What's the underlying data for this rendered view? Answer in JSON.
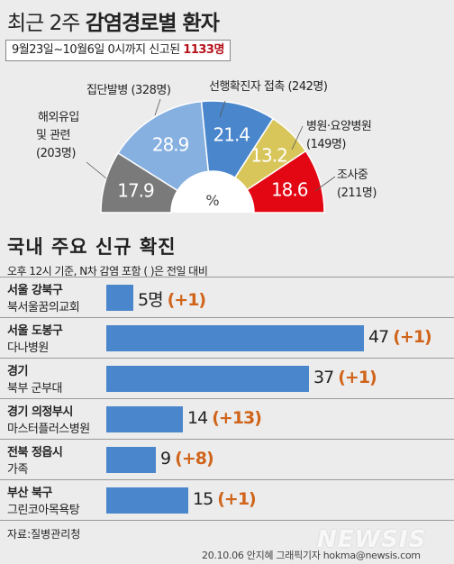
{
  "header": {
    "title_light": "최근 2주",
    "title_bold": "감염경로별 환자",
    "period_prefix": "9월23일~10월6일 0시까지 신고된",
    "period_total": "1133명"
  },
  "chart_data": [
    {
      "type": "pie",
      "style": "semi-donut",
      "center_label": "%",
      "unit": "%",
      "slices": [
        {
          "label": "해외유입 및 관련",
          "count": "(203명)",
          "value": 17.9,
          "color": "#7a7a7a"
        },
        {
          "label": "집단발병",
          "count": "(328명)",
          "value": 28.9,
          "color": "#86b0e0"
        },
        {
          "label": "선행확진자 접촉",
          "count": "(242명)",
          "value": 21.4,
          "color": "#4a86cc"
        },
        {
          "label": "병원·요양병원",
          "count": "(149명)",
          "value": 13.2,
          "color": "#d8c65a"
        },
        {
          "label": "조사중",
          "count": "(211명)",
          "value": 18.6,
          "color": "#e30613"
        }
      ]
    },
    {
      "type": "bar",
      "orientation": "horizontal",
      "title": "국내 주요 신규 확진",
      "note": "오후 12시 기준, N차 감염 포함 ( )은 전일 대비",
      "max_value": 47,
      "unit_suffix": "명",
      "items": [
        {
          "region": "서울 강북구",
          "cluster": "북서울꿈의교회",
          "value": 5,
          "value_label": "5명",
          "change": "(+1)"
        },
        {
          "region": "서울 도봉구",
          "cluster": "다나병원",
          "value": 47,
          "value_label": "47",
          "change": "(+1)"
        },
        {
          "region": "경기",
          "cluster": "북부 군부대",
          "value": 37,
          "value_label": "37",
          "change": "(+1)"
        },
        {
          "region": "경기 의정부시",
          "cluster": "마스터플러스병원",
          "value": 14,
          "value_label": "14",
          "change": "(+13)"
        },
        {
          "region": "전북 정읍시",
          "cluster": "가족",
          "value": 9,
          "value_label": "9",
          "change": "(+8)"
        },
        {
          "region": "부산 북구",
          "cluster": "그린코아목욕탕",
          "value": 15,
          "value_label": "15",
          "change": "(+1)"
        }
      ]
    }
  ],
  "footer": {
    "source": "자료:질병관리청",
    "credit": "20.10.06 안지혜 그래픽기자 hokma@newsis.com",
    "watermark": "NEWSIS"
  }
}
